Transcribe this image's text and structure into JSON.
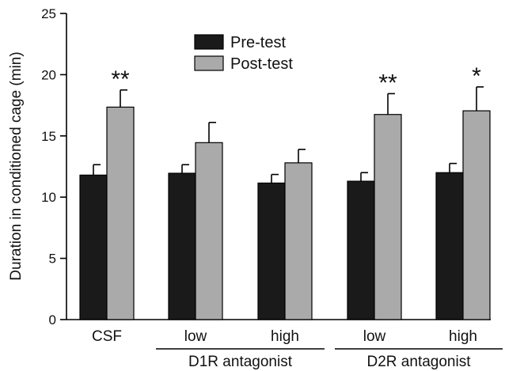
{
  "chart_data": {
    "type": "bar",
    "title": "",
    "xlabel": "",
    "ylabel": "Duration in conditioned cage (min)",
    "ylim": [
      0,
      25
    ],
    "yticks": [
      0,
      5,
      10,
      15,
      20,
      25
    ],
    "categories": [
      "CSF",
      "low",
      "high",
      "low",
      "high"
    ],
    "groups": [
      {
        "label": "D1R antagonist",
        "categories": [
          1,
          2
        ]
      },
      {
        "label": "D2R antagonist",
        "categories": [
          3,
          4
        ]
      }
    ],
    "series": [
      {
        "name": "Pre-test",
        "color": "#1a1a1a",
        "values": [
          11.8,
          11.95,
          11.15,
          11.3,
          12.0
        ],
        "errors": [
          0.85,
          0.7,
          0.7,
          0.7,
          0.75
        ]
      },
      {
        "name": "Post-test",
        "color": "#aaaaaa",
        "values": [
          17.35,
          14.45,
          12.8,
          16.75,
          17.05
        ],
        "errors": [
          1.4,
          1.65,
          1.1,
          1.7,
          1.95
        ]
      }
    ],
    "significance": [
      "**",
      "",
      "",
      "**",
      "*"
    ],
    "legend_position": "top-center",
    "grid": false
  }
}
